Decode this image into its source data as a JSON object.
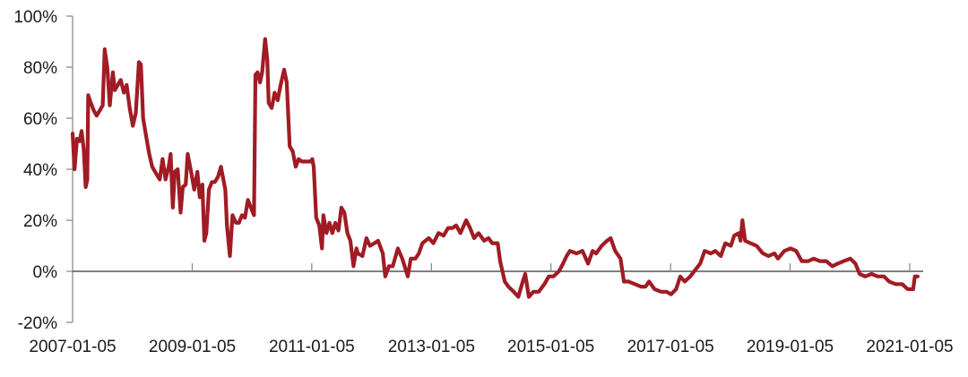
{
  "chart_data": {
    "type": "line",
    "title": "",
    "xlabel": "",
    "ylabel": "",
    "ylim": [
      -0.2,
      1.0
    ],
    "y_ticks": [
      "-20%",
      "0%",
      "20%",
      "40%",
      "60%",
      "80%",
      "100%"
    ],
    "y_tick_values": [
      -0.2,
      0,
      0.2,
      0.4,
      0.6,
      0.8,
      1.0
    ],
    "x_ticks": [
      "2007-01-05",
      "2009-01-05",
      "2011-01-05",
      "2013-01-05",
      "2015-01-05",
      "2017-01-05",
      "2019-01-05",
      "2021-01-05"
    ],
    "grid": false,
    "legend": "none",
    "color": "#a01c24",
    "series": [
      {
        "x": [
          "2007-01-05",
          "2007-01-17",
          "2007-02-01",
          "2007-02-17",
          "2007-03-01",
          "2007-03-14",
          "2007-03-26",
          "2007-04-05",
          "2007-04-10",
          "2007-04-26",
          "2007-05-14",
          "2007-06-01",
          "2007-06-20",
          "2007-07-08",
          "2007-07-20",
          "2007-08-05",
          "2007-08-20",
          "2007-09-08",
          "2007-09-20",
          "2007-10-08",
          "2007-10-26",
          "2007-11-14",
          "2007-12-01",
          "2007-12-20",
          "2008-01-08",
          "2008-01-26",
          "2008-02-14",
          "2008-02-26",
          "2008-03-11",
          "2008-03-29",
          "2008-04-17",
          "2008-05-05",
          "2008-05-23",
          "2008-06-20",
          "2008-07-08",
          "2008-07-26",
          "2008-08-14",
          "2008-08-26",
          "2008-09-08",
          "2008-09-20",
          "2008-10-08",
          "2008-10-26",
          "2008-11-08",
          "2008-11-26",
          "2008-12-08",
          "2008-12-29",
          "2009-01-17",
          "2009-02-05",
          "2009-02-20",
          "2009-03-08",
          "2009-03-20",
          "2009-04-01",
          "2009-04-17",
          "2009-05-05",
          "2009-05-23",
          "2009-06-11",
          "2009-06-29",
          "2009-07-26",
          "2009-08-05",
          "2009-08-23",
          "2009-09-08",
          "2009-09-29",
          "2009-10-17",
          "2009-11-05",
          "2009-11-23",
          "2009-12-11",
          "2009-12-29",
          "2010-01-17",
          "2010-01-26",
          "2010-02-08",
          "2010-02-23",
          "2010-03-08",
          "2010-03-26",
          "2010-04-08",
          "2010-04-17",
          "2010-05-05",
          "2010-05-23",
          "2010-06-11",
          "2010-06-29",
          "2010-07-20",
          "2010-08-05",
          "2010-08-23",
          "2010-09-11",
          "2010-09-29",
          "2010-10-17",
          "2010-11-05",
          "2010-12-01",
          "2010-12-29",
          "2011-01-08",
          "2011-01-17",
          "2011-02-01",
          "2011-02-20",
          "2011-03-08",
          "2011-03-17",
          "2011-04-05",
          "2011-04-23",
          "2011-05-11",
          "2011-05-29",
          "2011-06-17",
          "2011-07-05",
          "2011-07-23",
          "2011-08-11",
          "2011-08-29",
          "2011-09-17",
          "2011-10-05",
          "2011-10-14",
          "2011-11-11",
          "2011-12-05",
          "2011-12-26",
          "2012-01-23",
          "2012-02-14",
          "2012-03-14",
          "2012-03-29",
          "2012-04-20",
          "2012-05-14",
          "2012-06-14",
          "2012-07-11",
          "2012-08-14",
          "2012-09-01",
          "2012-09-29",
          "2012-10-20",
          "2012-11-11",
          "2012-12-20",
          "2013-01-17",
          "2013-02-17",
          "2013-03-20",
          "2013-04-17",
          "2013-05-14",
          "2013-06-05",
          "2013-07-01",
          "2013-08-05",
          "2013-08-29",
          "2013-09-23",
          "2013-10-20",
          "2013-11-23",
          "2013-12-20",
          "2014-01-11",
          "2014-02-14",
          "2014-03-01",
          "2014-03-29",
          "2014-04-20",
          "2014-05-23",
          "2014-06-20",
          "2014-07-17",
          "2014-08-01",
          "2014-08-23",
          "2014-09-20",
          "2014-10-23",
          "2014-11-26",
          "2014-12-23",
          "2015-01-20",
          "2015-02-23",
          "2015-03-20",
          "2015-04-11",
          "2015-05-01",
          "2015-06-11",
          "2015-07-17",
          "2015-08-20",
          "2015-09-17",
          "2015-10-08",
          "2015-11-11",
          "2015-12-14",
          "2016-01-05",
          "2016-02-01",
          "2016-03-05",
          "2016-03-26",
          "2016-04-23",
          "2016-06-01",
          "2016-07-08",
          "2016-08-05",
          "2016-08-26",
          "2016-09-29",
          "2016-11-08",
          "2016-12-11",
          "2017-01-08",
          "2017-02-08",
          "2017-03-05",
          "2017-04-01",
          "2017-05-05",
          "2017-06-11",
          "2017-07-05",
          "2017-08-01",
          "2017-09-08",
          "2017-10-05",
          "2017-11-08",
          "2017-12-05",
          "2018-01-08",
          "2018-01-29",
          "2018-02-26",
          "2018-03-08",
          "2018-03-20",
          "2018-04-05",
          "2018-05-08",
          "2018-06-14",
          "2018-07-23",
          "2018-08-26",
          "2018-10-01",
          "2018-10-23",
          "2018-12-01",
          "2019-01-08",
          "2019-02-11",
          "2019-03-17",
          "2019-04-26",
          "2019-05-29",
          "2019-07-05",
          "2019-08-14",
          "2019-09-20",
          "2019-10-23",
          "2019-11-29",
          "2020-01-08",
          "2020-02-08",
          "2020-03-05",
          "2020-04-08",
          "2020-05-17",
          "2020-06-23",
          "2020-08-01",
          "2020-09-01",
          "2020-10-11",
          "2020-11-20",
          "2020-12-23",
          "2021-01-26",
          "2021-02-05",
          "2021-02-23"
        ],
        "y": [
          0.54,
          0.4,
          0.52,
          0.51,
          0.55,
          0.48,
          0.33,
          0.36,
          0.69,
          0.66,
          0.63,
          0.61,
          0.63,
          0.65,
          0.87,
          0.8,
          0.65,
          0.78,
          0.71,
          0.73,
          0.75,
          0.7,
          0.73,
          0.64,
          0.57,
          0.62,
          0.82,
          0.81,
          0.6,
          0.53,
          0.46,
          0.41,
          0.39,
          0.36,
          0.44,
          0.36,
          0.41,
          0.46,
          0.25,
          0.39,
          0.4,
          0.23,
          0.33,
          0.34,
          0.46,
          0.39,
          0.32,
          0.39,
          0.29,
          0.34,
          0.12,
          0.15,
          0.32,
          0.35,
          0.35,
          0.37,
          0.41,
          0.32,
          0.18,
          0.06,
          0.22,
          0.19,
          0.19,
          0.22,
          0.21,
          0.28,
          0.25,
          0.22,
          0.77,
          0.78,
          0.74,
          0.78,
          0.91,
          0.83,
          0.66,
          0.64,
          0.7,
          0.67,
          0.73,
          0.79,
          0.74,
          0.49,
          0.47,
          0.41,
          0.44,
          0.43,
          0.43,
          0.43,
          0.44,
          0.41,
          0.21,
          0.18,
          0.09,
          0.22,
          0.15,
          0.19,
          0.15,
          0.19,
          0.16,
          0.25,
          0.23,
          0.15,
          0.12,
          0.02,
          0.09,
          0.07,
          0.06,
          0.13,
          0.1,
          0.11,
          0.12,
          0.07,
          -0.02,
          0.02,
          0.02,
          0.09,
          0.05,
          -0.02,
          0.05,
          0.05,
          0.07,
          0.11,
          0.13,
          0.11,
          0.15,
          0.14,
          0.17,
          0.17,
          0.18,
          0.15,
          0.2,
          0.17,
          0.13,
          0.15,
          0.12,
          0.13,
          0.11,
          0.11,
          0.04,
          -0.04,
          -0.06,
          -0.08,
          -0.1,
          -0.04,
          -0.01,
          -0.1,
          -0.08,
          -0.08,
          -0.05,
          -0.02,
          -0.02,
          0.0,
          0.03,
          0.06,
          0.08,
          0.07,
          0.08,
          0.03,
          0.08,
          0.07,
          0.1,
          0.12,
          0.13,
          0.08,
          0.05,
          -0.04,
          -0.04,
          -0.05,
          -0.06,
          -0.06,
          -0.04,
          -0.07,
          -0.08,
          -0.08,
          -0.09,
          -0.07,
          -0.02,
          -0.04,
          -0.02,
          0.01,
          0.03,
          0.08,
          0.07,
          0.08,
          0.06,
          0.11,
          0.1,
          0.14,
          0.15,
          0.12,
          0.2,
          0.12,
          0.11,
          0.1,
          0.07,
          0.06,
          0.07,
          0.05,
          0.08,
          0.09,
          0.08,
          0.04,
          0.04,
          0.05,
          0.04,
          0.04,
          0.02,
          0.03,
          0.04,
          0.05,
          0.03,
          -0.01,
          -0.02,
          -0.01,
          -0.02,
          -0.02,
          -0.04,
          -0.05,
          -0.05,
          -0.07,
          -0.07,
          -0.02,
          -0.02
        ]
      }
    ]
  }
}
